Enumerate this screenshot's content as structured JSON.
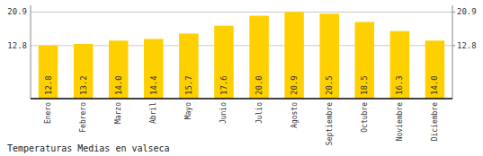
{
  "chart_data": {
    "type": "bar",
    "title": "Temperaturas Medias en valseca",
    "categories": [
      "Enero",
      "Febrero",
      "Marzo",
      "Abril",
      "Mayo",
      "Junio",
      "Julio",
      "Agosto",
      "Septiembre",
      "Octubre",
      "Noviembre",
      "Diciembre"
    ],
    "values": [
      12.8,
      13.2,
      14.0,
      14.4,
      15.7,
      17.6,
      20.0,
      20.9,
      20.5,
      18.5,
      16.3,
      14.0
    ],
    "value_labels": [
      "12.8",
      "13.2",
      "14.0",
      "14.4",
      "15.7",
      "17.6",
      "20.0",
      "20.9",
      "20.5",
      "18.5",
      "16.3",
      "14.0"
    ],
    "color": "#FFD000",
    "ylim": [
      0,
      22.5
    ],
    "yticks": [
      12.8,
      20.9
    ],
    "y2lim": [
      0,
      22.5
    ],
    "y2ticks": [
      12.8,
      20.9
    ],
    "grid": true,
    "data_labels": true
  }
}
